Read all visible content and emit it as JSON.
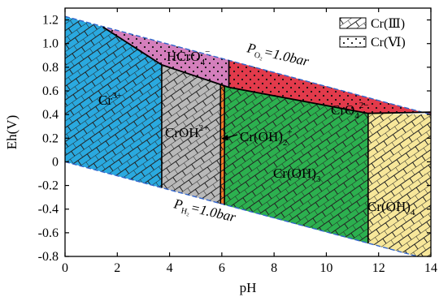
{
  "chart_data": {
    "type": "area",
    "xlabel": "pH",
    "ylabel": "Eh(V)",
    "xlim": [
      0,
      14
    ],
    "ylim": [
      -0.8,
      1.3
    ],
    "xticks": [
      0,
      2,
      4,
      6,
      8,
      10,
      12,
      14
    ],
    "yticks": [
      -0.8,
      -0.6,
      -0.4,
      -0.2,
      0,
      0.2,
      0.4,
      0.6,
      0.8,
      1.0,
      1.2
    ],
    "grid": false,
    "legend_position": "top-right",
    "legend": [
      {
        "label": "Cr(Ⅲ)",
        "pattern": "hatch"
      },
      {
        "label": "Cr(Ⅵ)",
        "pattern": "dots"
      }
    ],
    "boundaries": {
      "O2_line": {
        "label": "P",
        "subscript": "O₂",
        "suffix": "=1.0bar",
        "points": [
          [
            0,
            1.23
          ],
          [
            14,
            0.4
          ]
        ]
      },
      "H2_line": {
        "label": "P",
        "subscript": "H₂",
        "suffix": "=1.0bar",
        "points": [
          [
            0,
            0.0
          ],
          [
            14,
            -0.83
          ]
        ]
      },
      "cr3_cr6": [
        [
          1.45,
          1.14
        ],
        [
          3.7,
          0.82
        ],
        [
          6.27,
          0.63
        ],
        [
          11.6,
          0.41
        ],
        [
          14,
          0.42
        ]
      ]
    },
    "regions": [
      {
        "name": "Cr³⁺",
        "group": "Cr(Ⅲ)",
        "color": "#2aa9df",
        "polygon": [
          [
            0,
            1.23
          ],
          [
            1.45,
            1.14
          ],
          [
            3.7,
            0.82
          ],
          [
            3.7,
            -0.22
          ],
          [
            0,
            0.0
          ]
        ]
      },
      {
        "name": "HCrO₄⁻",
        "group": "Cr(Ⅵ)",
        "color": "#d47fbc",
        "polygon": [
          [
            1.45,
            1.14
          ],
          [
            6.27,
            0.86
          ],
          [
            6.27,
            0.63
          ],
          [
            3.7,
            0.82
          ]
        ]
      },
      {
        "name": "CrOH²⁺",
        "group": "Cr(Ⅲ)",
        "color": "#b9b9b9",
        "polygon": [
          [
            3.7,
            0.82
          ],
          [
            5.95,
            0.655
          ],
          [
            5.95,
            -0.355
          ],
          [
            3.7,
            -0.22
          ]
        ]
      },
      {
        "name": "Cr(OH)₂⁺",
        "group": "Cr(Ⅲ)",
        "color": "#f07b2a",
        "polygon": [
          [
            5.95,
            0.655
          ],
          [
            6.1,
            0.645
          ],
          [
            6.1,
            -0.365
          ],
          [
            5.95,
            -0.355
          ]
        ]
      },
      {
        "name": "CrO₄²⁻",
        "group": "Cr(Ⅵ)",
        "color": "#e23a4b",
        "polygon": [
          [
            6.27,
            0.86
          ],
          [
            14,
            0.4
          ],
          [
            14,
            0.42
          ],
          [
            11.6,
            0.41
          ],
          [
            6.27,
            0.63
          ]
        ]
      },
      {
        "name": "Cr(OH)₃",
        "group": "Cr(Ⅲ)",
        "color": "#2cb04f",
        "polygon": [
          [
            6.1,
            0.645
          ],
          [
            6.27,
            0.63
          ],
          [
            11.6,
            0.41
          ],
          [
            11.6,
            -0.69
          ],
          [
            6.1,
            -0.365
          ]
        ]
      },
      {
        "name": "Cr(OH)₄⁻",
        "group": "Cr(Ⅲ)",
        "color": "#f7e79a",
        "polygon": [
          [
            11.6,
            0.41
          ],
          [
            14,
            0.4
          ],
          [
            14,
            -0.83
          ],
          [
            11.6,
            -0.69
          ]
        ]
      }
    ],
    "labels": {
      "cr3": {
        "base": "Cr",
        "sup": "3+"
      },
      "hcro4": {
        "base": "HCrO",
        "sub": "4",
        "sup": "−"
      },
      "croh2": {
        "base": "CrOH",
        "sup": "2+"
      },
      "croh2p": {
        "base": "Cr(OH)",
        "sub": "2",
        "sup": "+"
      },
      "cro4": {
        "base": "CrO",
        "sub": "4",
        "sup": "2−"
      },
      "croh3": {
        "base": "Cr(OH)",
        "sub": "3"
      },
      "croh4": {
        "base": "Cr(OH)",
        "sub": "4"
      }
    }
  }
}
